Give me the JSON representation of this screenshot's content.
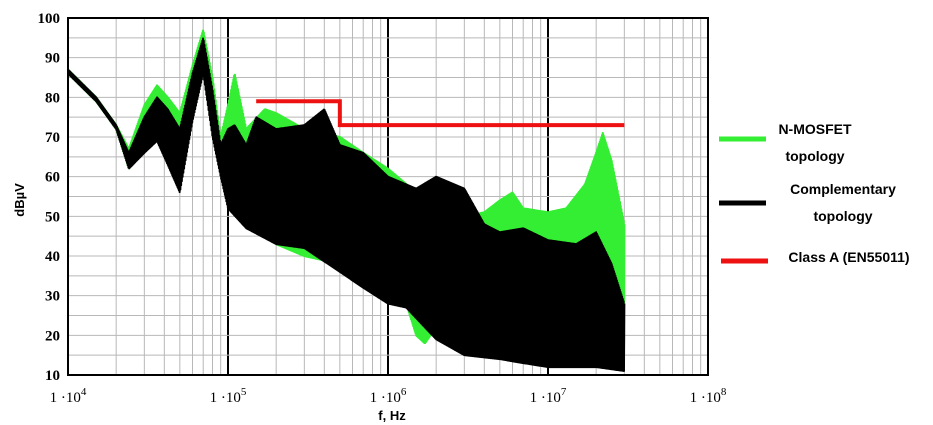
{
  "chart_data": {
    "type": "line",
    "xlabel": "f, Hz",
    "ylabel": "dBµV",
    "xscale": "log",
    "xlim": [
      10000,
      100000000
    ],
    "ylim": [
      10,
      100
    ],
    "grid": true,
    "legend_position": "right",
    "yticks": [
      "10",
      "20",
      "30",
      "40",
      "50",
      "60",
      "70",
      "80",
      "90",
      "100"
    ],
    "xticks": [
      {
        "value": 10000,
        "mantissa": "1",
        "dot": "·",
        "base": "10",
        "exp": "4"
      },
      {
        "value": 100000,
        "mantissa": "1",
        "dot": "·",
        "base": "10",
        "exp": "5"
      },
      {
        "value": 1000000,
        "mantissa": "1",
        "dot": "·",
        "base": "10",
        "exp": "6"
      },
      {
        "value": 10000000,
        "mantissa": "1",
        "dot": "·",
        "base": "10",
        "exp": "7"
      },
      {
        "value": 100000000,
        "mantissa": "1",
        "dot": "·",
        "base": "10",
        "exp": "8"
      }
    ],
    "series": [
      {
        "name": "N-MOSFET topology",
        "legend_lines": [
          "N-MOSFET",
          "topology"
        ],
        "color": "#33ee33",
        "envelope_upper": [
          [
            10000,
            87
          ],
          [
            15000,
            80
          ],
          [
            20000,
            73
          ],
          [
            24000,
            67
          ],
          [
            30000,
            78
          ],
          [
            36000,
            83
          ],
          [
            42000,
            80
          ],
          [
            50000,
            76
          ],
          [
            60000,
            88
          ],
          [
            70000,
            97
          ],
          [
            80000,
            85
          ],
          [
            90000,
            70
          ],
          [
            100000,
            78
          ],
          [
            110000,
            86
          ],
          [
            130000,
            72
          ],
          [
            170000,
            77
          ],
          [
            200000,
            76
          ],
          [
            300000,
            72
          ],
          [
            500000,
            70
          ],
          [
            700000,
            66
          ],
          [
            1000000,
            62
          ],
          [
            1500000,
            56
          ],
          [
            2000000,
            53
          ],
          [
            3000000,
            50
          ],
          [
            4000000,
            51
          ],
          [
            5000000,
            54
          ],
          [
            6000000,
            56
          ],
          [
            7000000,
            52
          ],
          [
            10000000,
            51
          ],
          [
            13000000,
            52
          ],
          [
            17000000,
            58
          ],
          [
            20000000,
            66
          ],
          [
            22000000,
            71
          ],
          [
            25000000,
            64
          ],
          [
            30000000,
            48
          ]
        ],
        "envelope_lower": [
          [
            10000,
            86
          ],
          [
            15000,
            79
          ],
          [
            20000,
            72
          ],
          [
            24000,
            62
          ],
          [
            30000,
            68
          ],
          [
            36000,
            72
          ],
          [
            42000,
            66
          ],
          [
            50000,
            58
          ],
          [
            60000,
            78
          ],
          [
            70000,
            88
          ],
          [
            80000,
            74
          ],
          [
            90000,
            64
          ],
          [
            100000,
            55
          ],
          [
            130000,
            49
          ],
          [
            200000,
            43
          ],
          [
            300000,
            40
          ],
          [
            500000,
            38
          ],
          [
            700000,
            37
          ],
          [
            1000000,
            35
          ],
          [
            1300000,
            28
          ],
          [
            1500000,
            20
          ],
          [
            1700000,
            18
          ],
          [
            2000000,
            22
          ],
          [
            3000000,
            26
          ],
          [
            5000000,
            28
          ],
          [
            7000000,
            25
          ],
          [
            10000000,
            22
          ],
          [
            15000000,
            20
          ],
          [
            20000000,
            20
          ],
          [
            30000000,
            18
          ]
        ]
      },
      {
        "name": "Complementary topology",
        "legend_lines": [
          "Complementary",
          "topology"
        ],
        "color": "#000000",
        "envelope_upper": [
          [
            10000,
            87
          ],
          [
            15000,
            80
          ],
          [
            20000,
            73
          ],
          [
            24000,
            66
          ],
          [
            30000,
            75
          ],
          [
            36000,
            80
          ],
          [
            42000,
            77
          ],
          [
            50000,
            72
          ],
          [
            60000,
            86
          ],
          [
            70000,
            95
          ],
          [
            80000,
            82
          ],
          [
            90000,
            68
          ],
          [
            100000,
            72
          ],
          [
            110000,
            73
          ],
          [
            130000,
            68
          ],
          [
            150000,
            75
          ],
          [
            200000,
            72
          ],
          [
            300000,
            73
          ],
          [
            400000,
            77
          ],
          [
            500000,
            68
          ],
          [
            700000,
            66
          ],
          [
            1000000,
            60
          ],
          [
            1500000,
            57
          ],
          [
            2000000,
            60
          ],
          [
            3000000,
            57
          ],
          [
            4000000,
            48
          ],
          [
            5000000,
            46
          ],
          [
            7000000,
            47
          ],
          [
            10000000,
            44
          ],
          [
            15000000,
            43
          ],
          [
            20000000,
            46
          ],
          [
            25000000,
            38
          ],
          [
            30000000,
            28
          ]
        ],
        "envelope_lower": [
          [
            10000,
            86
          ],
          [
            15000,
            79
          ],
          [
            20000,
            72
          ],
          [
            24000,
            62
          ],
          [
            30000,
            66
          ],
          [
            36000,
            69
          ],
          [
            42000,
            63
          ],
          [
            50000,
            56
          ],
          [
            60000,
            74
          ],
          [
            70000,
            86
          ],
          [
            80000,
            70
          ],
          [
            90000,
            60
          ],
          [
            100000,
            52
          ],
          [
            130000,
            47
          ],
          [
            200000,
            43
          ],
          [
            300000,
            42
          ],
          [
            500000,
            36
          ],
          [
            700000,
            32
          ],
          [
            1000000,
            28
          ],
          [
            1300000,
            27
          ],
          [
            1700000,
            22
          ],
          [
            2000000,
            19
          ],
          [
            3000000,
            15
          ],
          [
            5000000,
            14
          ],
          [
            7000000,
            13
          ],
          [
            10000000,
            12
          ],
          [
            20000000,
            12
          ],
          [
            30000000,
            11
          ]
        ]
      },
      {
        "name": "Class A (EN55011)",
        "legend_lines": [
          "Class A (EN55011)"
        ],
        "color": "#ee1111",
        "x": [
          150000,
          500000,
          500000,
          30000000
        ],
        "y": [
          79,
          79,
          73,
          73
        ]
      }
    ]
  }
}
